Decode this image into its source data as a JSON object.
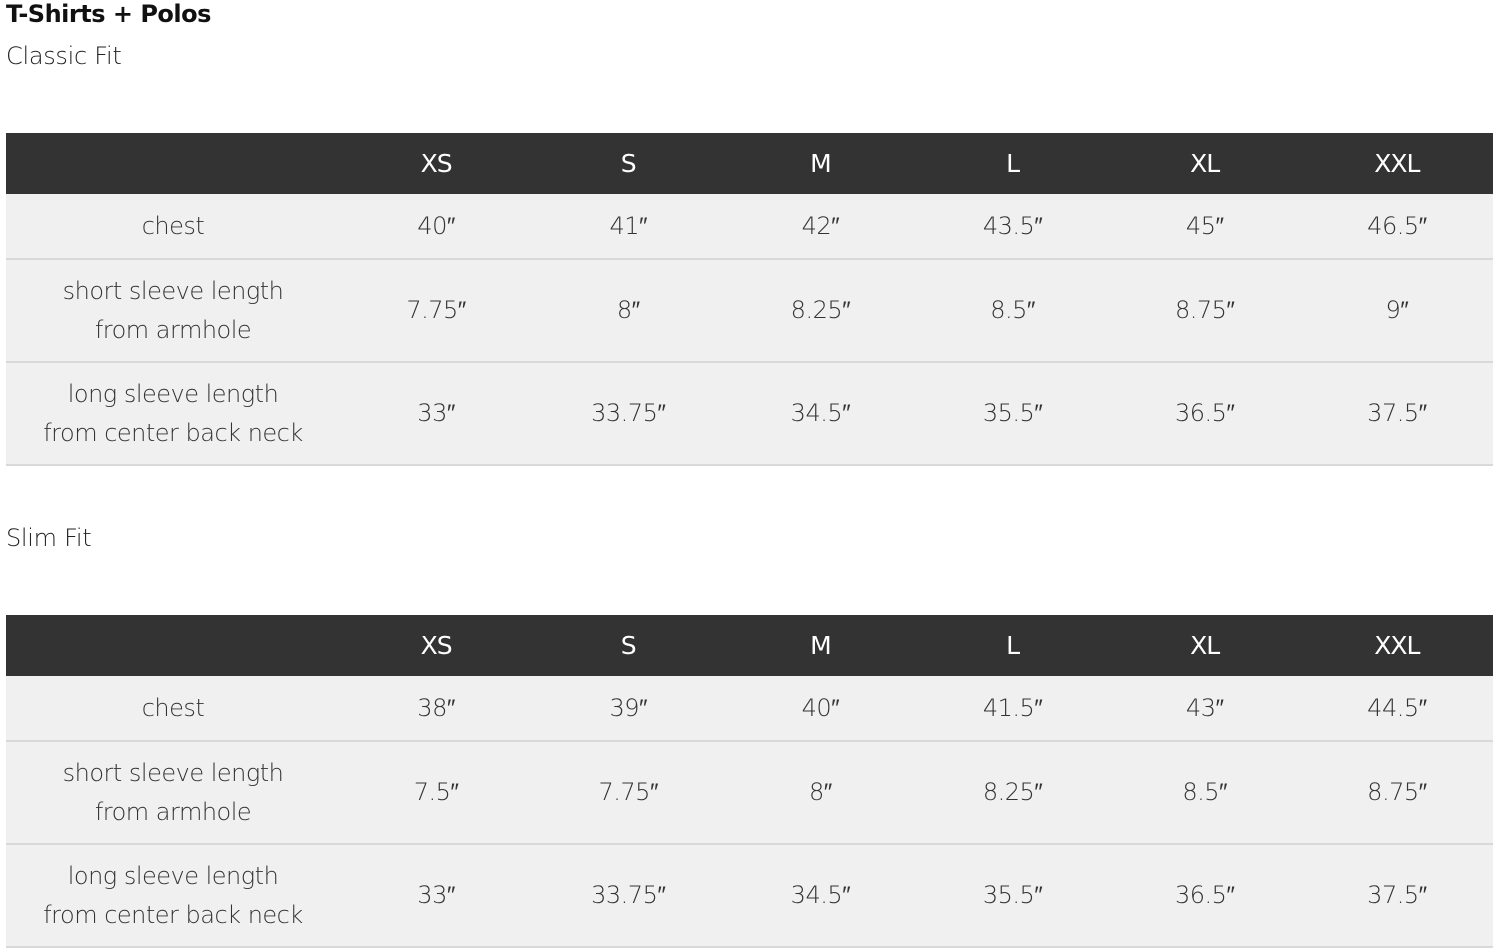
{
  "title": "T-Shirts + Polos",
  "sizes": [
    "XS",
    "S",
    "M",
    "L",
    "XL",
    "XXL"
  ],
  "colors": {
    "header_bg": "#333333",
    "row_bg": "#f0f0f0",
    "divider": "#d9d9d9"
  },
  "tables": [
    {
      "name": "Classic Fit",
      "rows": [
        {
          "label": [
            "chest"
          ],
          "values": [
            "40″",
            "41″",
            "42″",
            "43.5″",
            "45″",
            "46.5″"
          ]
        },
        {
          "label": [
            "short sleeve length",
            "from armhole"
          ],
          "values": [
            "7.75″",
            "8″",
            "8.25″",
            "8.5″",
            "8.75″",
            "9″"
          ]
        },
        {
          "label": [
            "long sleeve length",
            "from center back neck"
          ],
          "values": [
            "33″",
            "33.75″",
            "34.5″",
            "35.5″",
            "36.5″",
            "37.5″"
          ]
        }
      ]
    },
    {
      "name": "Slim Fit",
      "rows": [
        {
          "label": [
            "chest"
          ],
          "values": [
            "38″",
            "39″",
            "40″",
            "41.5″",
            "43″",
            "44.5″"
          ]
        },
        {
          "label": [
            "short sleeve length",
            "from armhole"
          ],
          "values": [
            "7.5″",
            "7.75″",
            "8″",
            "8.25″",
            "8.5″",
            "8.75″"
          ]
        },
        {
          "label": [
            "long sleeve length",
            "from center back neck"
          ],
          "values": [
            "33″",
            "33.75″",
            "34.5″",
            "35.5″",
            "36.5″",
            "37.5″"
          ]
        }
      ]
    }
  ]
}
